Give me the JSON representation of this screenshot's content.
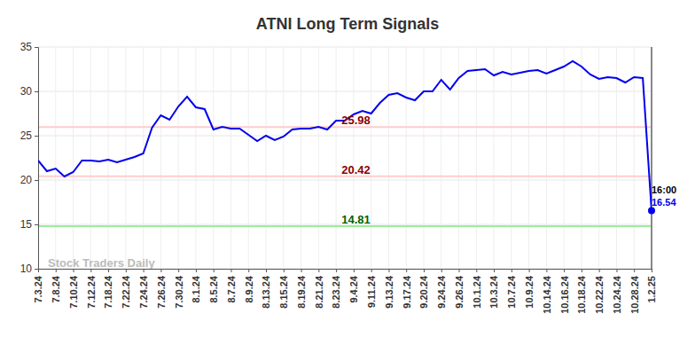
{
  "chart_data": {
    "type": "line",
    "title": "ATNI Long Term Signals",
    "watermark": "Stock Traders Daily",
    "categories": [
      "7.3.24",
      null,
      "7.8.24",
      null,
      "7.10.24",
      null,
      "7.12.24",
      null,
      "7.18.24",
      null,
      "7.22.24",
      null,
      "7.24.24",
      null,
      "7.26.24",
      null,
      "7.30.24",
      null,
      "8.1.24",
      null,
      "8.5.24",
      null,
      "8.7.24",
      null,
      "8.9.24",
      null,
      "8.13.24",
      null,
      "8.15.24",
      null,
      "8.19.24",
      null,
      "8.21.24",
      null,
      "8.23.24",
      null,
      "9.4.24",
      null,
      "9.11.24",
      null,
      "9.13.24",
      null,
      "9.17.24",
      null,
      "9.20.24",
      null,
      "9.24.24",
      null,
      "9.26.24",
      null,
      "10.1.24",
      null,
      "10.3.24",
      null,
      "10.7.24",
      null,
      "10.9.24",
      null,
      "10.14.24",
      null,
      "10.16.24",
      null,
      "10.18.24",
      null,
      "10.22.24",
      null,
      "10.24.24",
      null,
      "10.28.24",
      null,
      "1.2.25"
    ],
    "series": [
      {
        "name": "ATNI",
        "color": "#0000ee",
        "values": [
          22.2,
          21.0,
          21.3,
          20.4,
          20.9,
          22.2,
          22.2,
          22.1,
          22.3,
          22.0,
          22.3,
          22.6,
          23.0,
          25.9,
          27.3,
          26.8,
          28.3,
          29.4,
          28.2,
          28.0,
          25.7,
          26.0,
          25.8,
          25.8,
          25.1,
          24.4,
          25.0,
          24.5,
          24.9,
          25.7,
          25.8,
          25.8,
          26.0,
          25.7,
          26.7,
          26.7,
          27.4,
          27.8,
          27.5,
          28.7,
          29.6,
          29.8,
          29.3,
          29.0,
          30.0,
          30.0,
          31.3,
          30.2,
          31.5,
          32.3,
          32.4,
          32.5,
          31.8,
          32.2,
          31.9,
          32.1,
          32.3,
          32.4,
          32.0,
          32.4,
          32.8,
          33.4,
          32.8,
          31.9,
          31.4,
          31.6,
          31.5,
          31.0,
          31.6,
          31.5,
          16.54
        ]
      }
    ],
    "last_label": "16:00",
    "reference_lines": [
      {
        "value": 25.98,
        "color": "#ffcccc",
        "label_color": "#8b0000"
      },
      {
        "value": 20.42,
        "color": "#ffcccc",
        "label_color": "#8b0000"
      },
      {
        "value": 14.81,
        "color": "#99ee99",
        "label_color": "#006400"
      }
    ],
    "ylim": [
      10,
      35
    ],
    "yticks": [
      10,
      15,
      20,
      25,
      30,
      35
    ],
    "grid": true
  }
}
